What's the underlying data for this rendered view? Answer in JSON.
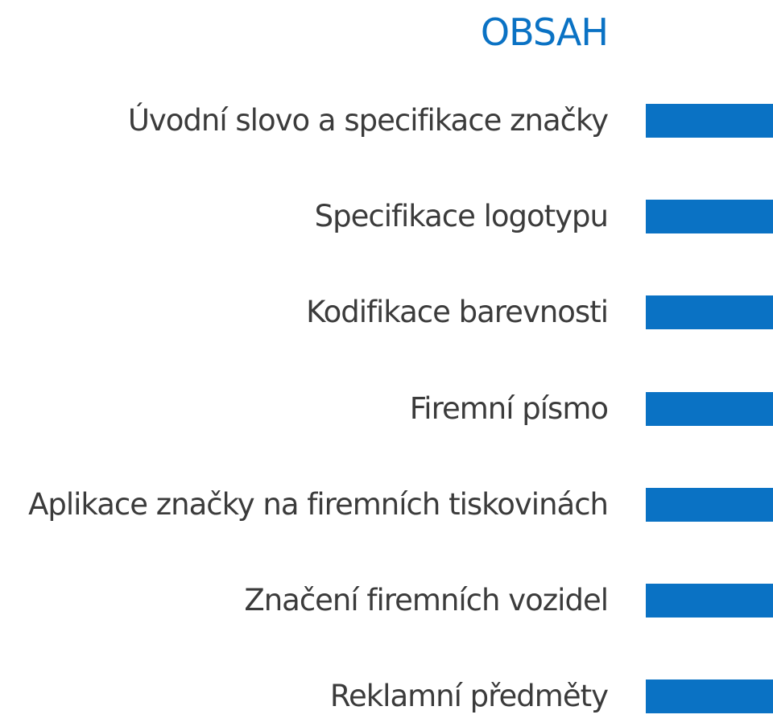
{
  "page": {
    "title": "OBSAH"
  },
  "colors": {
    "accent": "#0a72c4",
    "text": "#3b3b3b",
    "background": "#ffffff"
  },
  "toc": {
    "items": [
      {
        "label": "Úvodní slovo a specifikace značky"
      },
      {
        "label": "Specifikace logotypu"
      },
      {
        "label": "Kodifikace barevnosti"
      },
      {
        "label": "Firemní písmo"
      },
      {
        "label": "Aplikace značky na firemních tiskovinách"
      },
      {
        "label": "Značení firemních vozidel"
      },
      {
        "label": "Reklamní předměty"
      }
    ]
  }
}
